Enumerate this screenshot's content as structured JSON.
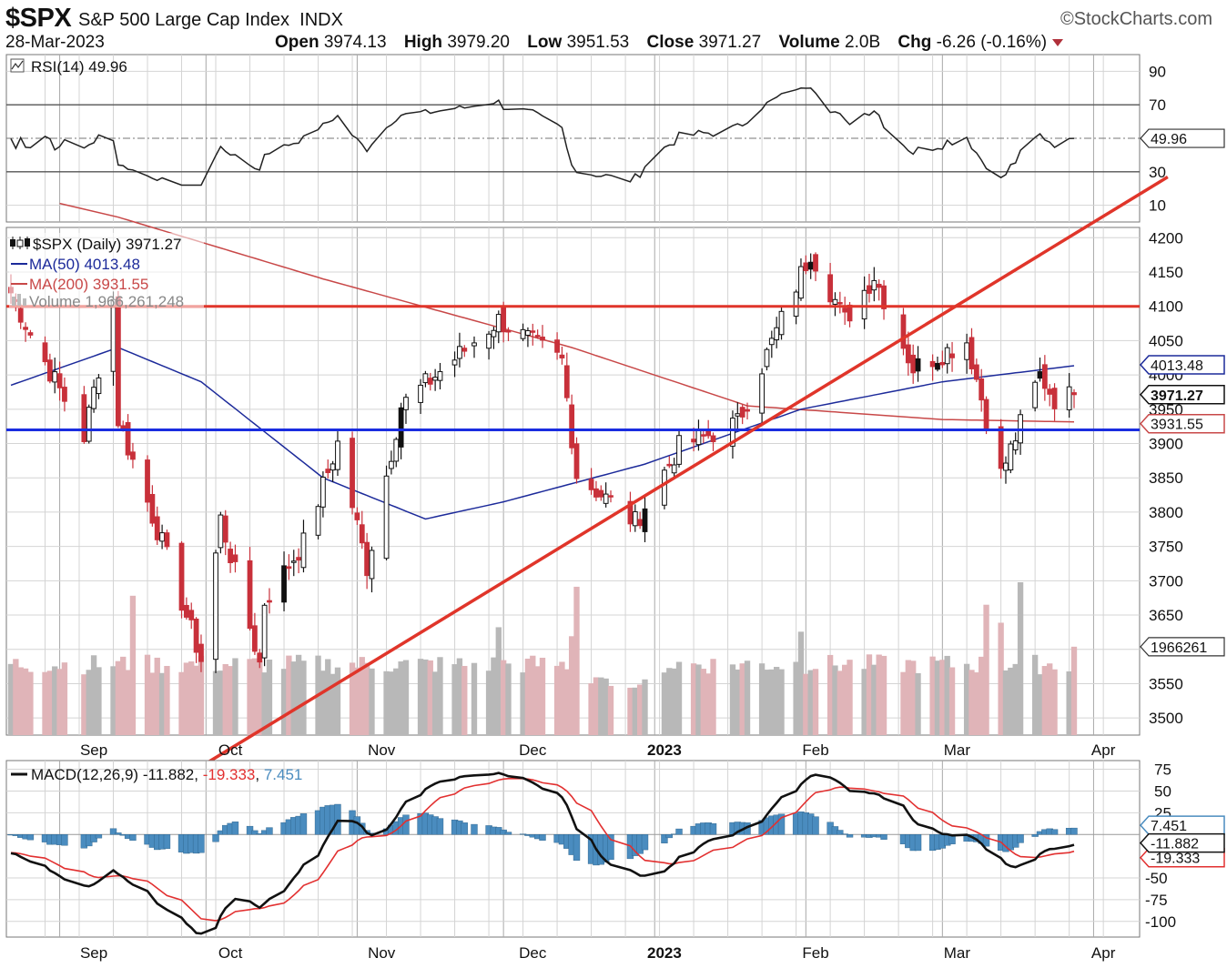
{
  "header": {
    "symbol": "$SPX",
    "name": "S&P 500 Large Cap Index",
    "exchange": "INDX",
    "brand": "©StockCharts.com",
    "date": "28-Mar-2023",
    "open_label": "Open",
    "open": "3974.13",
    "high_label": "High",
    "high": "3979.20",
    "low_label": "Low",
    "low": "3951.53",
    "close_label": "Close",
    "close": "3971.27",
    "volume_label": "Volume",
    "volume": "2.0B",
    "chg_label": "Chg",
    "chg": "-6.26 (-0.16%)"
  },
  "colors": {
    "up": "#ffffff",
    "down": "#c8303a",
    "candle_outline": "#111111",
    "ma50": "#1c2a9a",
    "ma200": "#c84848",
    "vol_up": "#b8b8b8",
    "vol_down": "#e0b4b8",
    "trend_red": "#e0352a",
    "res_red": "#e0352a",
    "sup_blue": "#1a2de0",
    "macd_line": "#111111",
    "signal_line": "#e23030",
    "hist": "#4a8cbf",
    "grid": "#d4d4d4"
  },
  "x_labels": [
    "Sep",
    "Oct",
    "Nov",
    "Dec",
    "2023",
    "Feb",
    "Mar",
    "Apr"
  ],
  "rsi": {
    "legend": "RSI(14) 49.96",
    "ticks": [
      "90",
      "70",
      "50",
      "30",
      "10"
    ],
    "tick_values": [
      90,
      70,
      50,
      30,
      10
    ],
    "last_tag": "49.96",
    "ylim": [
      0,
      100
    ]
  },
  "price": {
    "legend_main": "$SPX (Daily) 3971.27",
    "legend_ma50": "MA(50) 4013.48",
    "legend_ma200": "MA(200) 3931.55",
    "legend_vol": "Volume 1,966,261,248",
    "ticks": [
      "4200",
      "4150",
      "4100",
      "4050",
      "4000",
      "3950",
      "3900",
      "3850",
      "3800",
      "3750",
      "3700",
      "3650",
      "3600",
      "3550",
      "3500"
    ],
    "tick_values": [
      4200,
      4150,
      4100,
      4050,
      4000,
      3950,
      3900,
      3850,
      3800,
      3750,
      3700,
      3650,
      3600,
      3550,
      3500
    ],
    "tag_ma50": "4013.48",
    "tag_close": "3971.27",
    "tag_ma200": "3931.55",
    "tag_vol": "1966261",
    "ylim": [
      3475,
      4215
    ]
  },
  "macd": {
    "legend_prefix": "MACD(12,26,9)",
    "legend_macd": "-11.882",
    "legend_signal": "-19.333",
    "legend_hist": "7.451",
    "ticks": [
      "75",
      "50",
      "25",
      "-50",
      "-75",
      "-100"
    ],
    "tick_values": [
      75,
      50,
      25,
      -50,
      -75,
      -100
    ],
    "tag_hist": "7.451",
    "tag_macd": "-11.882",
    "tag_signal": "-19.333",
    "ylim": [
      -118,
      85
    ]
  },
  "chart_data": {
    "type": "candlestick",
    "title": "$SPX S&P 500 Large Cap Index INDX",
    "xlabel": "",
    "ylabel": "",
    "date_range": [
      "2022-08-22",
      "2023-03-28"
    ],
    "x_axis_labels": [
      "Sep",
      "Oct",
      "Nov",
      "Dec",
      "2023",
      "Feb",
      "Mar",
      "Apr"
    ],
    "price_ylim": [
      3475,
      4215
    ],
    "anchors": [
      {
        "date": "2022-08-22",
        "close": 4120
      },
      {
        "date": "2022-08-26",
        "close": 4060
      },
      {
        "date": "2022-09-06",
        "close": 3910
      },
      {
        "date": "2022-09-12",
        "close": 4110
      },
      {
        "date": "2022-09-13",
        "close": 3935
      },
      {
        "date": "2022-09-22",
        "close": 3755
      },
      {
        "date": "2022-09-30",
        "close": 3585
      },
      {
        "date": "2022-10-04",
        "close": 3790
      },
      {
        "date": "2022-10-12",
        "close": 3580
      },
      {
        "date": "2022-10-13",
        "close": 3670
      },
      {
        "date": "2022-10-21",
        "close": 3755
      },
      {
        "date": "2022-10-28",
        "close": 3900
      },
      {
        "date": "2022-11-03",
        "close": 3720
      },
      {
        "date": "2022-11-10",
        "close": 3955
      },
      {
        "date": "2022-11-30",
        "close": 4080
      },
      {
        "date": "2022-12-13",
        "close": 4020
      },
      {
        "date": "2022-12-16",
        "close": 3855
      },
      {
        "date": "2022-12-28",
        "close": 3785
      },
      {
        "date": "2023-01-06",
        "close": 3895
      },
      {
        "date": "2023-01-18",
        "close": 3930
      },
      {
        "date": "2023-02-02",
        "close": 4180
      },
      {
        "date": "2023-02-09",
        "close": 4080
      },
      {
        "date": "2023-02-15",
        "close": 4145
      },
      {
        "date": "2023-02-23",
        "close": 4010
      },
      {
        "date": "2023-03-06",
        "close": 4050
      },
      {
        "date": "2023-03-13",
        "close": 3855
      },
      {
        "date": "2023-03-21",
        "close": 4000
      },
      {
        "date": "2023-03-24",
        "close": 3965
      },
      {
        "date": "2023-03-28",
        "close": 3971.27
      }
    ],
    "last_bar": {
      "date": "2023-03-28",
      "open": 3974.13,
      "high": 3979.2,
      "low": 3951.53,
      "close": 3971.27,
      "volume": 1966261248
    },
    "ma50_anchors": [
      {
        "date": "2022-08-22",
        "value": 3985
      },
      {
        "date": "2022-09-13",
        "value": 4040
      },
      {
        "date": "2022-09-30",
        "value": 3990
      },
      {
        "date": "2022-10-25",
        "value": 3850
      },
      {
        "date": "2022-11-15",
        "value": 3790
      },
      {
        "date": "2022-12-01",
        "value": 3815
      },
      {
        "date": "2022-12-30",
        "value": 3870
      },
      {
        "date": "2023-01-31",
        "value": 3950
      },
      {
        "date": "2023-03-01",
        "value": 3990
      },
      {
        "date": "2023-03-28",
        "value": 4013.48
      }
    ],
    "ma200_anchors": [
      {
        "date": "2022-09-13",
        "value": 4230
      },
      {
        "date": "2022-10-25",
        "value": 4140
      },
      {
        "date": "2022-12-15",
        "value": 4040
      },
      {
        "date": "2023-01-20",
        "value": 3955
      },
      {
        "date": "2023-03-01",
        "value": 3935
      },
      {
        "date": "2023-03-28",
        "value": 3931.55
      }
    ],
    "trendline": {
      "from": {
        "date": "2022-09-29",
        "value": 3425
      },
      "to": {
        "date": "2023-04-05",
        "value": 4240
      }
    },
    "resistance_level": 4100,
    "support_level": 3920,
    "rsi_overbought": 70,
    "rsi_oversold": 30,
    "rsi_last": 49.96,
    "macd_last": {
      "macd": -11.882,
      "signal": -19.333,
      "histogram": 7.451
    },
    "volume_max_date": "2023-03-17",
    "volume_last": 1966261248
  }
}
